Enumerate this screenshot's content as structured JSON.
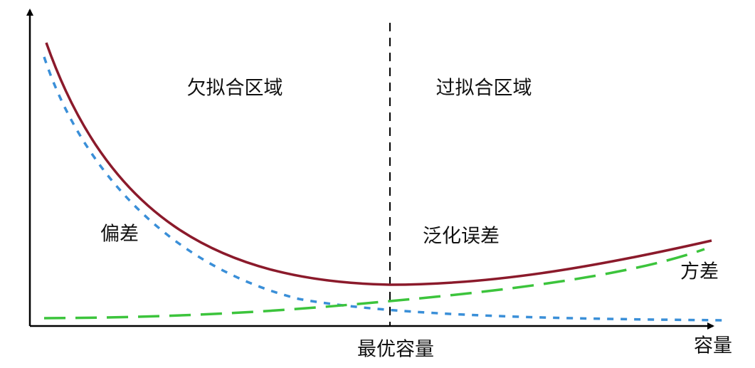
{
  "regions": {
    "underfitting": "欠拟合区域",
    "overfitting": "过拟合区域"
  },
  "curves": {
    "bias": "偏差",
    "generalization_error": "泛化误差",
    "variance": "方差"
  },
  "axis": {
    "optimal_capacity": "最优容量",
    "x_label": "容量"
  }
}
